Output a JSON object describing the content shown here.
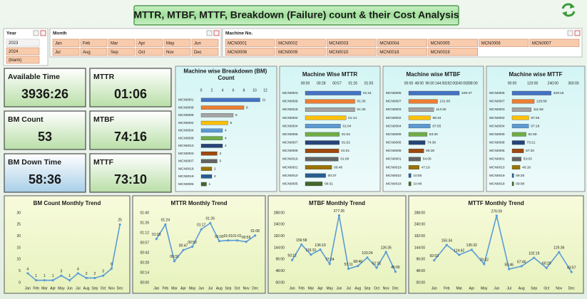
{
  "title": "MTTR, MTBF, MTTF, Breakdown (Failure) count & their Cost Analysis",
  "slicers": [
    {
      "label": "Year",
      "items": [
        "2023",
        "2024",
        "(blank)"
      ]
    },
    {
      "label": "Month",
      "items": [
        "Jan",
        "Feb",
        "Mar",
        "Apr",
        "May",
        "Jun",
        "Jul",
        "Aug",
        "Sep",
        "Oct",
        "Nov",
        "Dec"
      ]
    },
    {
      "label": "Machine No.",
      "items": [
        "MCN0001",
        "MCN0002",
        "MCN0003",
        "MCN0004",
        "MCN0005",
        "MCN0006",
        "MCN0007",
        "MCN0008",
        "MCN0009",
        "MCN0010",
        "MCN0018",
        "MCN0019"
      ]
    }
  ],
  "kpis": [
    {
      "label": "Available Time",
      "value": "3936:26"
    },
    {
      "label": "MTTR",
      "value": "01:06"
    },
    {
      "label": "BM Count",
      "value": 53
    },
    {
      "label": "MTBF",
      "value": "74:16"
    },
    {
      "label": "BM Down Time",
      "value": "58:36"
    },
    {
      "label": "MTTF",
      "value": "73:10"
    }
  ],
  "chart_data": [
    {
      "type": "bar",
      "title": "Machine wise Breakdown (BM) Count",
      "categories": [
        "MCN0001",
        "MCN0006",
        "MCN0009",
        "MCN0002",
        "MCN0004",
        "MCN0008",
        "MCN0010",
        "MCN0003",
        "MCN0007",
        "MCN0018",
        "MCN0019",
        "MCN0005"
      ],
      "values": [
        11,
        8,
        6,
        5,
        4,
        4,
        4,
        3,
        3,
        2,
        2,
        1
      ],
      "colors": [
        "#4472c4",
        "#ed7d31",
        "#a5a5a5",
        "#ffc000",
        "#5b9bd5",
        "#70ad47",
        "#264478",
        "#9e480e",
        "#636363",
        "#997300",
        "#255e91",
        "#43682b"
      ],
      "xlim": [
        0,
        12
      ],
      "xticks": [
        0,
        2,
        4,
        6,
        8,
        10,
        12
      ]
    },
    {
      "type": "bar",
      "title": "Machine Wise MTTR",
      "categories": [
        "MCN0003",
        "MCN0009",
        "MCN0018",
        "MCN0002",
        "MCN0004",
        "MCN0006",
        "MCN0007",
        "MCN0008",
        "MCN0019",
        "MCN0001",
        "MCN0010",
        "MCN0005"
      ],
      "values": [
        101,
        90,
        90,
        74,
        64,
        62,
        62,
        61,
        60,
        48,
        37,
        31
      ],
      "value_labels": [
        "01:41",
        "01:30",
        "01:30",
        "01:14",
        "01:04",
        "01:02",
        "01:02",
        "01:01",
        "01:00",
        "00:48",
        "00:37",
        "00:31"
      ],
      "colors": [
        "#4472c4",
        "#ed7d31",
        "#a5a5a5",
        "#ffc000",
        "#5b9bd5",
        "#70ad47",
        "#264478",
        "#9e480e",
        "#636363",
        "#997300",
        "#255e91",
        "#43682b"
      ],
      "xlim": [
        0,
        115.2
      ],
      "xticks": [
        {
          "value": 0,
          "label": "00:00"
        },
        {
          "value": 28.8,
          "label": "00:28"
        },
        {
          "value": 57.6,
          "label": "00:57"
        },
        {
          "value": 86.4,
          "label": "01:26"
        },
        {
          "value": 115.2,
          "label": "01:55"
        }
      ]
    },
    {
      "type": "bar",
      "title": "Machine wise MTBF",
      "categories": [
        "MCN0005",
        "MCN0007",
        "MCN0003",
        "MCN0002",
        "MCN0004",
        "MCN0009",
        "MCN0006",
        "MCN0008",
        "MCN0001",
        "MCN0019",
        "MCN0010",
        "MCN0018"
      ],
      "values": [
        229.78,
        131,
        113.67,
        98.57,
        97.92,
        83.5,
        74.6,
        68.5,
        54.08,
        47.32,
        10.83,
        10.8
      ],
      "value_labels": [
        "229:47",
        "131:00",
        "113:40",
        "98:34",
        "97:55",
        "83:30",
        "74:36",
        "68:30",
        "54:05",
        "47:19",
        "10:50",
        "10:48"
      ],
      "colors": [
        "#4472c4",
        "#ed7d31",
        "#a5a5a5",
        "#ffc000",
        "#5b9bd5",
        "#70ad47",
        "#264478",
        "#9e480e",
        "#636363",
        "#997300",
        "#255e91",
        "#43682b"
      ],
      "xlim": [
        0,
        288
      ],
      "xticks": [
        {
          "value": 0,
          "label": "00:00"
        },
        {
          "value": 48,
          "label": "48:00"
        },
        {
          "value": 96,
          "label": "96:00"
        },
        {
          "value": 144,
          "label": "144:00"
        },
        {
          "value": 192,
          "label": "192:00"
        },
        {
          "value": 240,
          "label": "240:00"
        },
        {
          "value": 288,
          "label": "288:00"
        }
      ]
    },
    {
      "type": "bar",
      "title": "Machine wise MTTF",
      "categories": [
        "MCN0005",
        "MCN0007",
        "MCN0003",
        "MCN0002",
        "MCN0004",
        "MCN0009",
        "MCN0008",
        "MCN0006",
        "MCN0001",
        "MCN0010",
        "MCN0019",
        "MCN0018"
      ],
      "values": [
        229.27,
        129.97,
        111.98,
        97.75,
        97.3,
        81.98,
        73.35,
        67.33,
        53.05,
        46.27,
        9.5,
        9.13
      ],
      "value_labels": [
        "229:16",
        "129:58",
        "111:59",
        "97:45",
        "97:18",
        "81:59",
        "73:21",
        "67:20",
        "53:03",
        "46:16",
        "09:30",
        "09:08"
      ],
      "colors": [
        "#4472c4",
        "#ed7d31",
        "#a5a5a5",
        "#ffc000",
        "#5b9bd5",
        "#70ad47",
        "#264478",
        "#9e480e",
        "#636363",
        "#997300",
        "#255e91",
        "#43682b"
      ],
      "xlim": [
        0,
        360
      ],
      "xticks": [
        {
          "value": 0,
          "label": "00:00"
        },
        {
          "value": 120,
          "label": "120:00"
        },
        {
          "value": 240,
          "label": "240:00"
        },
        {
          "value": 360,
          "label": "360:00"
        }
      ]
    },
    {
      "type": "line",
      "title": "BM Count Monthly Trend",
      "categories": [
        "Jan",
        "Feb",
        "Mar",
        "Apr",
        "May",
        "Jun",
        "Jul",
        "Aug",
        "Sep",
        "Oct",
        "Nov",
        "Dec"
      ],
      "values": [
        4,
        1,
        1,
        1,
        3,
        1,
        4,
        2,
        2,
        3,
        6,
        25
      ],
      "color": "#5b9bd5",
      "ylim": [
        0,
        30
      ],
      "yticks": [
        0,
        5,
        10,
        15,
        20,
        25,
        30
      ]
    },
    {
      "type": "line",
      "title": "MTTR Monthly Trend",
      "categories": [
        "Jan",
        "Feb",
        "Mar",
        "Apr",
        "May",
        "Jun",
        "Jul",
        "Aug",
        "Sep",
        "Oct",
        "Nov",
        "Dec"
      ],
      "values": [
        63,
        84,
        31,
        47,
        52,
        77,
        86,
        60,
        61,
        61,
        59,
        68
      ],
      "value_labels": [
        "01:03",
        "01:24",
        "00:31",
        "00:47",
        "00:52",
        "01:17",
        "01:26",
        "01:00",
        "01:01",
        "01:01",
        "00:59",
        "01:08"
      ],
      "color": "#5b9bd5",
      "ylim": [
        0,
        100.8
      ],
      "yticks": [
        {
          "value": 0,
          "label": "00:00"
        },
        {
          "value": 14.4,
          "label": "00:14"
        },
        {
          "value": 28.8,
          "label": "00:28"
        },
        {
          "value": 43.2,
          "label": "00:43"
        },
        {
          "value": 57.6,
          "label": "00:57"
        },
        {
          "value": 72,
          "label": "01:12"
        },
        {
          "value": 86.4,
          "label": "01:26"
        },
        {
          "value": 100.8,
          "label": "01:40"
        }
      ]
    },
    {
      "type": "line",
      "title": "MTBF Monthly Trend",
      "categories": [
        "Jan",
        "Feb",
        "Mar",
        "Apr",
        "May",
        "Jun",
        "Jul",
        "Aug",
        "Sep",
        "Oct",
        "Nov",
        "Dec"
      ],
      "values": [
        93.2,
        156.97,
        115.52,
        136.32,
        77.4,
        277.43,
        57.18,
        68.77,
        103.4,
        61.52,
        126.58,
        45.1
      ],
      "value_labels": [
        "93:12",
        "156:58",
        "115:31",
        "136:19",
        "77:24",
        "277:26",
        "57:11",
        "68:46",
        "103:24",
        "61:31",
        "126:35",
        "45:06"
      ],
      "color": "#5b9bd5",
      "ylim": [
        0,
        288
      ],
      "yticks": [
        {
          "value": 0,
          "label": "00:00"
        },
        {
          "value": 48,
          "label": "48:00"
        },
        {
          "value": 96,
          "label": "96:00"
        },
        {
          "value": 144,
          "label": "144:00"
        },
        {
          "value": 192,
          "label": "192:00"
        },
        {
          "value": 240,
          "label": "240:00"
        },
        {
          "value": 288,
          "label": "288:00"
        }
      ]
    },
    {
      "type": "line",
      "title": "MTTF Monthly Trend",
      "categories": [
        "Jan",
        "Feb",
        "Mar",
        "Apr",
        "May",
        "Jun",
        "Jul",
        "Aug",
        "Sep",
        "Oct",
        "Nov",
        "Dec"
      ],
      "values": [
        92.05,
        155.57,
        114.7,
        135.53,
        76.53,
        276.15,
        55.77,
        67.77,
        102.32,
        60.48,
        125.6,
        43.95
      ],
      "value_labels": [
        "92:03",
        "155:34",
        "114:42",
        "135:32",
        "76:32",
        "276:09",
        "55:46",
        "67:46",
        "102:19",
        "60:29",
        "125:36",
        "43:57"
      ],
      "color": "#5b9bd5",
      "ylim": [
        0,
        288
      ],
      "yticks": [
        {
          "value": 0,
          "label": "00:00"
        },
        {
          "value": 48,
          "label": "48:00"
        },
        {
          "value": 96,
          "label": "96:00"
        },
        {
          "value": 144,
          "label": "144:00"
        },
        {
          "value": 192,
          "label": "192:00"
        },
        {
          "value": 240,
          "label": "240:00"
        },
        {
          "value": 288,
          "label": "288:00"
        }
      ]
    }
  ]
}
